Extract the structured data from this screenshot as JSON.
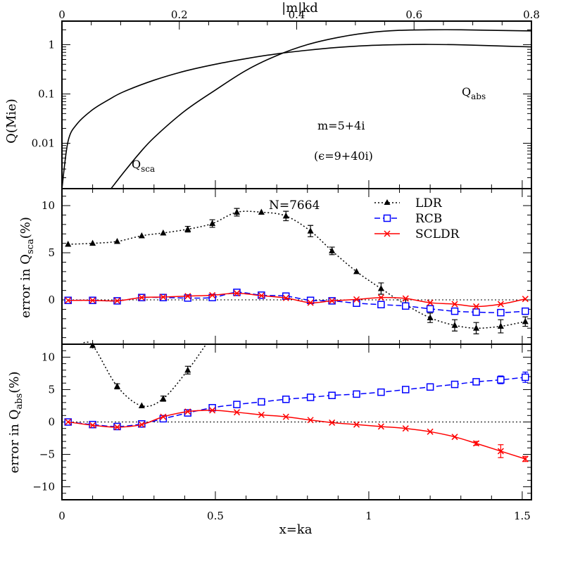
{
  "chart_data": [
    {
      "panel": "top",
      "type": "line",
      "ylabel": "Q(Mie)",
      "yscale": "log",
      "ylim": [
        0.0012,
        3.0
      ],
      "xlim": [
        0,
        1.53
      ],
      "ytick_labels": [
        "0.01",
        "0.1",
        "1"
      ],
      "top_axis": {
        "label": "|m|kd",
        "ticks": [
          "0",
          "0.2",
          "0.4",
          "0.6",
          "0.8"
        ],
        "ticks_values": [
          0,
          0.2,
          0.4,
          0.6,
          0.8
        ],
        "lim": [
          0,
          0.8
        ]
      },
      "annotations": {
        "abs": "Q",
        "abs_sub": "abs",
        "sca": "Q",
        "sca_sub": "sca",
        "m": "m=5+4i",
        "eps": "(ϵ=9+40i)"
      },
      "series": [
        {
          "id": "Qabs",
          "x": [
            0.0,
            0.02,
            0.05,
            0.1,
            0.15,
            0.2,
            0.3,
            0.4,
            0.5,
            0.6,
            0.7,
            0.8,
            0.9,
            1.0,
            1.1,
            1.2,
            1.3,
            1.4,
            1.53
          ],
          "values": [
            0.0012,
            0.011,
            0.025,
            0.048,
            0.075,
            0.11,
            0.19,
            0.29,
            0.4,
            0.52,
            0.65,
            0.77,
            0.88,
            0.96,
            1.0,
            1.01,
            0.99,
            0.95,
            0.9
          ]
        },
        {
          "id": "Qsca",
          "x": [
            0.16,
            0.2,
            0.25,
            0.3,
            0.4,
            0.5,
            0.6,
            0.7,
            0.8,
            0.9,
            1.0,
            1.1,
            1.2,
            1.3,
            1.4,
            1.53
          ],
          "values": [
            0.0012,
            0.0025,
            0.006,
            0.013,
            0.045,
            0.12,
            0.3,
            0.6,
            1.0,
            1.4,
            1.75,
            1.95,
            2.0,
            2.0,
            1.95,
            1.9
          ]
        }
      ]
    },
    {
      "panel": "middle",
      "type": "line",
      "ylabel": "error in Q",
      "ylabel_sub": "sca",
      "ylabel_suffix": "(%)",
      "ylim": [
        -4.7,
        11.8
      ],
      "xlim": [
        0,
        1.53
      ],
      "ytick_labels": [
        "0",
        "5",
        "10"
      ],
      "annotation": "N=7664",
      "legend": [
        "LDR",
        "RCB",
        "SCLDR"
      ],
      "series": [
        {
          "name": "LDR",
          "color": "#000000",
          "marker": "triangle",
          "x": [
            0.02,
            0.1,
            0.18,
            0.26,
            0.33,
            0.41,
            0.49,
            0.57,
            0.65,
            0.73,
            0.81,
            0.88,
            0.96,
            1.04,
            1.12,
            1.2,
            1.28,
            1.35,
            1.43,
            1.51
          ],
          "values": [
            5.9,
            6.0,
            6.2,
            6.8,
            7.1,
            7.5,
            8.1,
            9.3,
            9.3,
            8.9,
            7.3,
            5.2,
            3.0,
            1.2,
            -0.5,
            -1.9,
            -2.7,
            -3.0,
            -2.8,
            -2.3
          ],
          "errors": [
            0,
            0,
            0,
            0,
            0,
            0.3,
            0.4,
            0.4,
            0,
            0.5,
            0.6,
            0.4,
            0,
            0.6,
            0.5,
            0.5,
            0.6,
            0.6,
            0.7,
            0.5
          ]
        },
        {
          "name": "RCB",
          "color": "#0000ff",
          "marker": "square",
          "x": [
            0.02,
            0.1,
            0.18,
            0.26,
            0.33,
            0.41,
            0.49,
            0.57,
            0.65,
            0.73,
            0.81,
            0.88,
            0.96,
            1.04,
            1.12,
            1.2,
            1.28,
            1.35,
            1.43,
            1.51
          ],
          "values": [
            -0.05,
            -0.05,
            -0.1,
            0.25,
            0.25,
            0.2,
            0.25,
            0.8,
            0.5,
            0.4,
            -0.05,
            -0.1,
            -0.35,
            -0.5,
            -0.65,
            -0.95,
            -1.2,
            -1.3,
            -1.35,
            -1.2
          ]
        },
        {
          "name": "SCLDR",
          "color": "#ff0000",
          "marker": "cross",
          "x": [
            0.02,
            0.1,
            0.18,
            0.26,
            0.33,
            0.41,
            0.49,
            0.57,
            0.65,
            0.73,
            0.81,
            0.88,
            0.96,
            1.04,
            1.12,
            1.2,
            1.28,
            1.35,
            1.43,
            1.51
          ],
          "values": [
            -0.05,
            -0.05,
            -0.1,
            0.25,
            0.3,
            0.4,
            0.5,
            0.7,
            0.45,
            0.2,
            -0.3,
            -0.1,
            0.05,
            0.25,
            0.15,
            -0.3,
            -0.45,
            -0.7,
            -0.45,
            0.1
          ]
        }
      ]
    },
    {
      "panel": "bottom",
      "type": "line",
      "ylabel": "error in Q",
      "ylabel_sub": "abs",
      "ylabel_suffix": "(%)",
      "xlabel": "x=ka",
      "ylim": [
        -12,
        12
      ],
      "xlim": [
        0,
        1.53
      ],
      "ytick_labels": [
        "−10",
        "−5",
        "0",
        "5",
        "10"
      ],
      "ytick_values": [
        -10,
        -5,
        0,
        5,
        10
      ],
      "xtick_labels": [
        "0",
        "0.5",
        "1",
        "1.5"
      ],
      "xtick_values": [
        0,
        0.5,
        1,
        1.5
      ],
      "series": [
        {
          "name": "LDR",
          "color": "#000000",
          "marker": "triangle",
          "x": [
            0.1,
            0.18,
            0.26,
            0.33,
            0.41
          ],
          "values": [
            11.8,
            5.5,
            2.5,
            3.6,
            8.0
          ],
          "errors": [
            0,
            0.4,
            0,
            0.4,
            0.6
          ],
          "curve_ends": [
            [
              0.06,
              15.0
            ],
            [
              0.47,
              15.0
            ]
          ]
        },
        {
          "name": "RCB",
          "color": "#0000ff",
          "marker": "square",
          "x": [
            0.02,
            0.1,
            0.18,
            0.26,
            0.33,
            0.41,
            0.49,
            0.57,
            0.65,
            0.73,
            0.81,
            0.88,
            0.96,
            1.04,
            1.12,
            1.2,
            1.28,
            1.35,
            1.43,
            1.51
          ],
          "values": [
            0.0,
            -0.4,
            -0.7,
            -0.3,
            0.5,
            1.4,
            2.2,
            2.7,
            3.1,
            3.5,
            3.8,
            4.1,
            4.3,
            4.6,
            5.0,
            5.4,
            5.8,
            6.2,
            6.5,
            6.9
          ],
          "errors": [
            0,
            0,
            0,
            0,
            0,
            0,
            0,
            0,
            0,
            0,
            0,
            0,
            0,
            0,
            0,
            0,
            0,
            0.2,
            0.6,
            0.8
          ]
        },
        {
          "name": "SCLDR",
          "color": "#ff0000",
          "marker": "cross",
          "x": [
            0.02,
            0.1,
            0.18,
            0.26,
            0.33,
            0.41,
            0.49,
            0.57,
            0.65,
            0.73,
            0.81,
            0.88,
            0.96,
            1.04,
            1.12,
            1.2,
            1.28,
            1.35,
            1.43,
            1.51
          ],
          "values": [
            0.0,
            -0.5,
            -0.8,
            -0.4,
            0.8,
            1.6,
            1.8,
            1.5,
            1.1,
            0.8,
            0.3,
            -0.1,
            -0.4,
            -0.7,
            -1.0,
            -1.5,
            -2.3,
            -3.3,
            -4.5,
            -5.7
          ],
          "errors": [
            0,
            0,
            0,
            0,
            0,
            0,
            0,
            0,
            0,
            0,
            0,
            0,
            0,
            0,
            0,
            0,
            0,
            0.3,
            1.0,
            0.4
          ]
        }
      ]
    }
  ]
}
